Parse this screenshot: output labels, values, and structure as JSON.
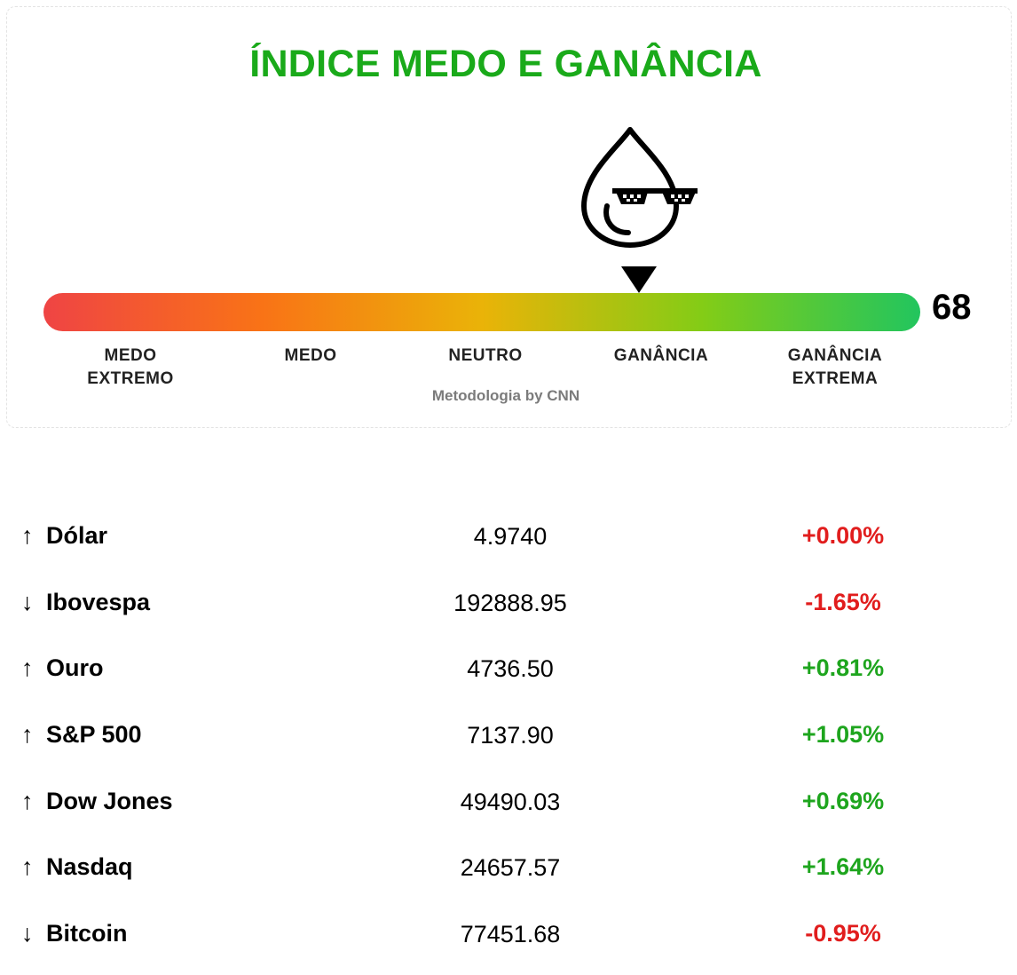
{
  "widget": {
    "title": "ÍNDICE MEDO E GANÂNCIA",
    "title_color": "#1aaa1a",
    "score": "68",
    "score_value": 68,
    "credit": "Metodologia by CNN",
    "mascot_icon": "drop-with-sunglasses-icon",
    "gradient_colors": [
      "#ef4444",
      "#f97316",
      "#eab308",
      "#84cc16",
      "#22c55e"
    ],
    "labels": [
      {
        "line1": "MEDO",
        "line2": "EXTREMO"
      },
      {
        "line1": "MEDO",
        "line2": ""
      },
      {
        "line1": "NEUTRO",
        "line2": ""
      },
      {
        "line1": "GANÂNCIA",
        "line2": ""
      },
      {
        "line1": "GANÂNCIA",
        "line2": "EXTREMA"
      }
    ]
  },
  "tickers": [
    {
      "arrow": "↑",
      "name": "Dólar",
      "value": "4.9740",
      "change": "+0.00%",
      "change_color": "#e11d1d"
    },
    {
      "arrow": "↓",
      "name": "Ibovespa",
      "value": "192888.95",
      "change": "-1.65%",
      "change_color": "#e11d1d"
    },
    {
      "arrow": "↑",
      "name": "Ouro",
      "value": "4736.50",
      "change": "+0.81%",
      "change_color": "#1ea51e"
    },
    {
      "arrow": "↑",
      "name": "S&P 500",
      "value": "7137.90",
      "change": "+1.05%",
      "change_color": "#1ea51e"
    },
    {
      "arrow": "↑",
      "name": "Dow Jones",
      "value": "49490.03",
      "change": "+0.69%",
      "change_color": "#1ea51e"
    },
    {
      "arrow": "↑",
      "name": "Nasdaq",
      "value": "24657.57",
      "change": "+1.64%",
      "change_color": "#1ea51e"
    },
    {
      "arrow": "↓",
      "name": "Bitcoin",
      "value": "77451.68",
      "change": "-0.95%",
      "change_color": "#e11d1d"
    }
  ]
}
